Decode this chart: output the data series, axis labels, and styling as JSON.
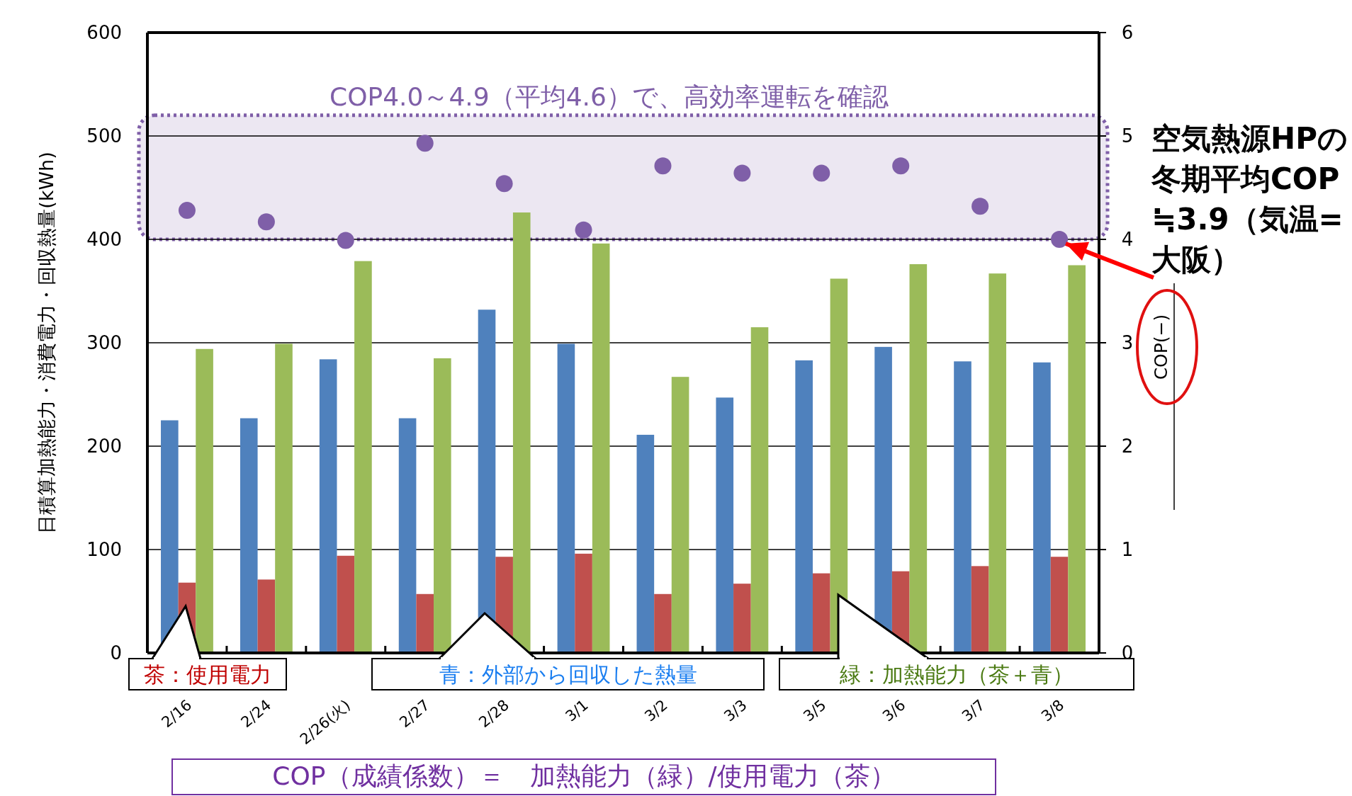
{
  "chart_data": {
    "type": "bar",
    "categories": [
      "2/16",
      "2/24",
      "2/26(火)",
      "2/27",
      "2/28",
      "3/1",
      "3/2",
      "3/3",
      "3/5",
      "3/6",
      "3/7",
      "3/8"
    ],
    "series": [
      {
        "color": "#4f81bd",
        "values": [
          225,
          227,
          284,
          227,
          332,
          299,
          211,
          247,
          283,
          296,
          282,
          281
        ]
      },
      {
        "color": "#c0504d",
        "values": [
          68,
          71,
          94,
          57,
          93,
          96,
          57,
          67,
          77,
          79,
          84,
          93
        ]
      },
      {
        "color": "#9bbb59",
        "values": [
          294,
          299,
          379,
          285,
          426,
          396,
          267,
          315,
          362,
          376,
          367,
          375
        ]
      },
      {
        "type": "scatter",
        "axis": "y2",
        "color": "#7f5fa8",
        "values": [
          4.28,
          4.17,
          3.99,
          4.93,
          4.54,
          4.09,
          4.71,
          4.64,
          4.64,
          4.71,
          4.32,
          4.0
        ]
      }
    ],
    "marker": "circle",
    "ylim": [
      0,
      600
    ],
    "yticks": [
      0,
      100,
      200,
      300,
      400,
      500,
      600
    ],
    "y2lim": [
      0,
      6
    ],
    "y2ticks": [
      0,
      1,
      2,
      3,
      4,
      5,
      6
    ],
    "ylabel": "日積算加熱能力・消費電力・回収熱量(kWh)",
    "y2label": "COP(−)",
    "grid": "y",
    "bands": [
      {
        "axis": "y2",
        "from": 4,
        "to": 5.2,
        "label": "COP4.0～4.9（平均4.6）で、高効率運転を確認",
        "color": "#7f5fa8"
      }
    ],
    "annotations": [
      "茶：使用電力",
      "青：外部から回収した熱量",
      "緑：加熱能力（茶＋青）",
      "COP（成績係数）＝　加熱能力（緑）/使用電力（茶）",
      {
        "text": "空気熱源HPの冬期平均COP≒3.9（気温=大阪）",
        "x": "3/8",
        "y": 400
      }
    ]
  }
}
